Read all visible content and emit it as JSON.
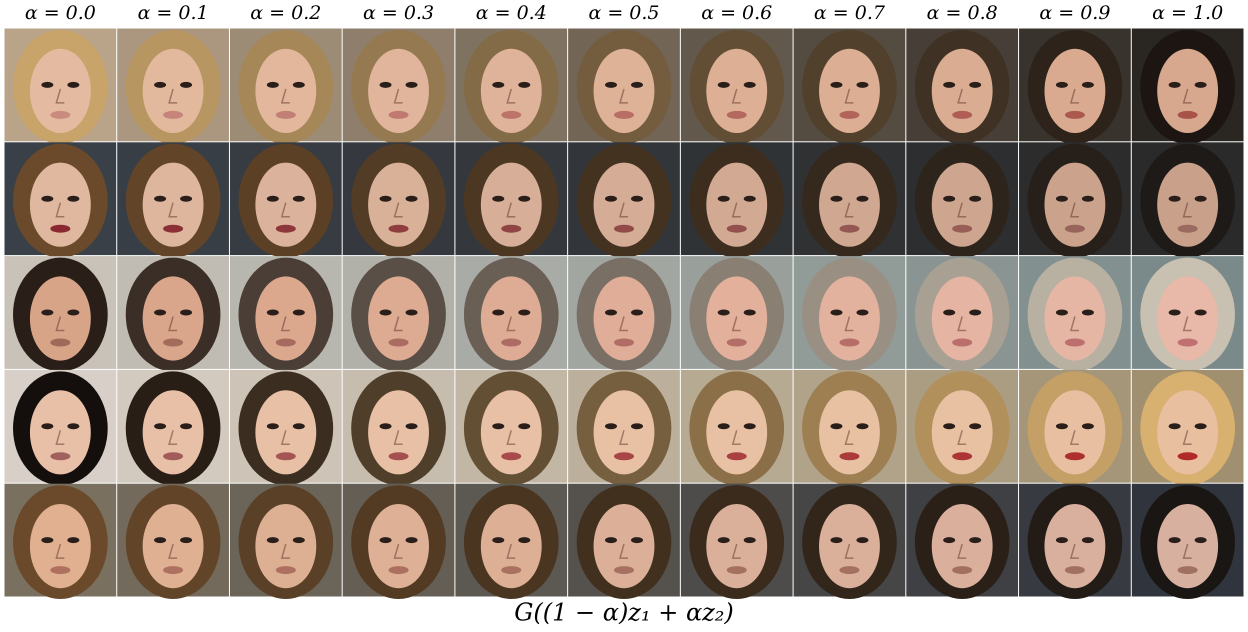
{
  "column_labels": [
    "α = 0.0",
    "α = 0.1",
    "α = 0.2",
    "α = 0.3",
    "α = 0.4",
    "α = 0.5",
    "α = 0.6",
    "α = 0.7",
    "α = 0.8",
    "α = 0.9",
    "α = 1.0"
  ],
  "caption": "G((1 − α)z₁ + αz₂)"
}
